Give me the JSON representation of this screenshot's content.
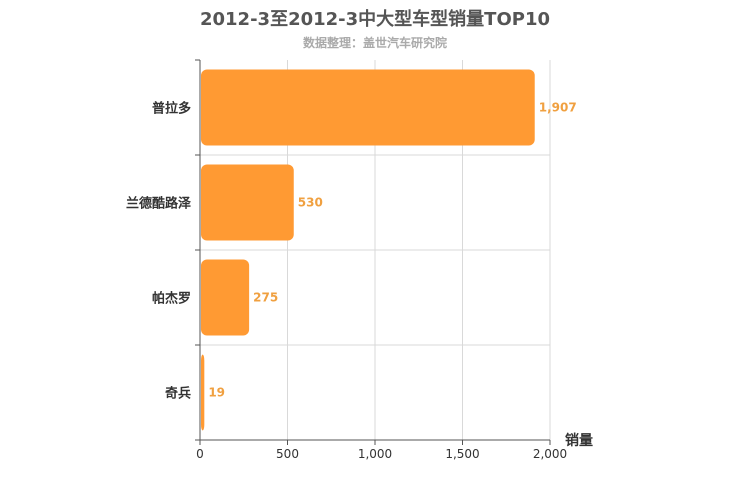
{
  "chart_data": {
    "type": "bar",
    "orientation": "horizontal",
    "title": "2012-3至2012-3中大型车型销量TOP10",
    "subtitle": "数据整理：盖世汽车研究院",
    "categories": [
      "普拉多",
      "兰德酷路泽",
      "帕杰罗",
      "奇兵"
    ],
    "values": [
      1907,
      530,
      275,
      19
    ],
    "value_labels": [
      "1,907",
      "530",
      "275",
      "19"
    ],
    "xlabel": "销量",
    "xlim": [
      0,
      2000
    ],
    "xticks": [
      0,
      500,
      1000,
      1500,
      2000
    ],
    "xtick_labels": [
      "0",
      "500",
      "1,000",
      "1,500",
      "2,000"
    ],
    "grid": true,
    "colors": {
      "bar": "#ff9a33",
      "value_label": "#f0a040",
      "grid": "#d9d9d9",
      "axis": "#555555",
      "text": "#333333"
    }
  }
}
